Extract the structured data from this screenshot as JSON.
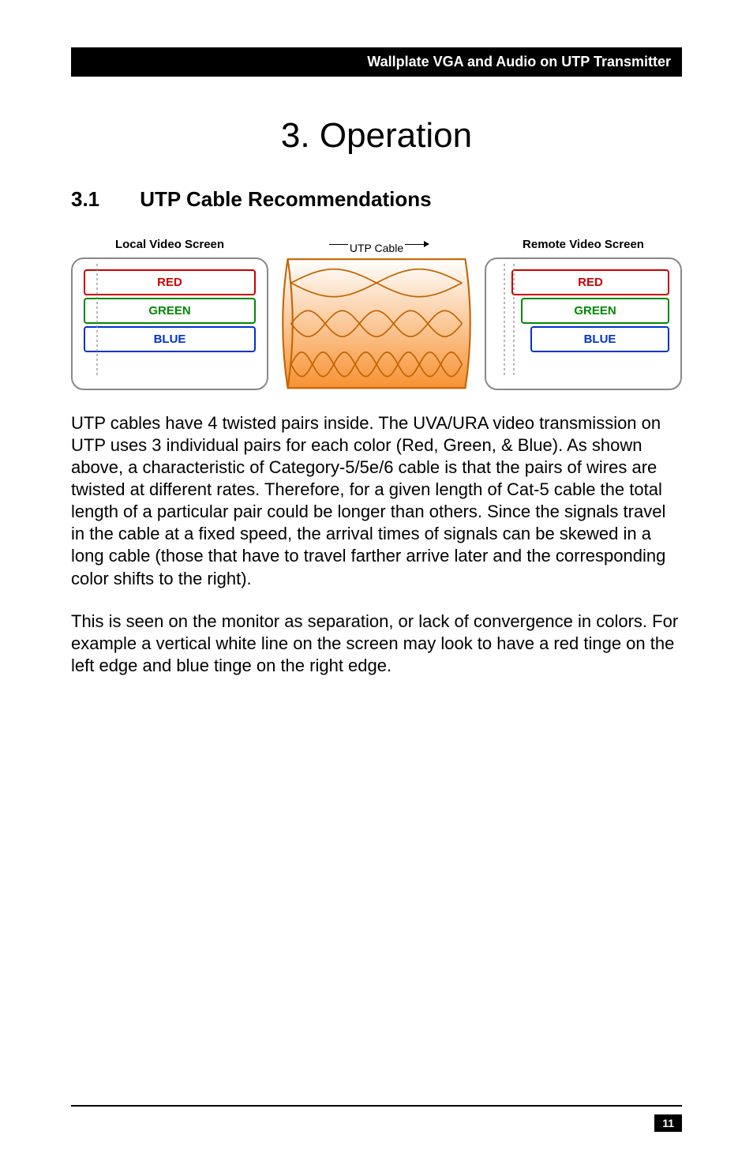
{
  "header": {
    "title": "Wallplate VGA and Audio on UTP Transmitter"
  },
  "chapter": {
    "title": "3. Operation"
  },
  "section": {
    "number": "3.1",
    "title": "UTP Cable Recommendations"
  },
  "diagram": {
    "left_label": "Local Video Screen",
    "center_label": "UTP Cable",
    "right_label": "Remote Video Screen",
    "colors": [
      {
        "label": "RED",
        "text_color": "#cc0000",
        "border_color": "#cc0000"
      },
      {
        "label": "GREEN",
        "text_color": "#008800",
        "border_color": "#008800"
      },
      {
        "label": "BLUE",
        "text_color": "#0033cc",
        "border_color": "#0033cc"
      }
    ],
    "cable": {
      "fill_top": "#ffffff",
      "fill_bottom": "#f79233",
      "outer_stroke": "#c26400",
      "wire_stroke": "#c26400",
      "wave_counts": [
        2,
        5,
        8
      ]
    }
  },
  "paragraphs": [
    "UTP cables have 4 twisted pairs inside. The UVA/URA video transmission on UTP uses 3 individual pairs for each color (Red, Green, & Blue). As shown above, a characteristic of Category-5/5e/6 cable is that the pairs of wires are twisted at different rates. Therefore, for a given length of Cat-5 cable the total length of a particular pair could be longer than others. Since the signals travel in the cable at a fixed speed, the arrival times of signals can be skewed in a long cable (those that have to travel farther arrive later and the corresponding color shifts to the right).",
    "This is seen on the monitor as separation, or lack of convergence in colors. For example a vertical white line on the screen may look to have a red tinge on the left edge and blue tinge on the right edge."
  ],
  "footer": {
    "page_number": "11"
  }
}
